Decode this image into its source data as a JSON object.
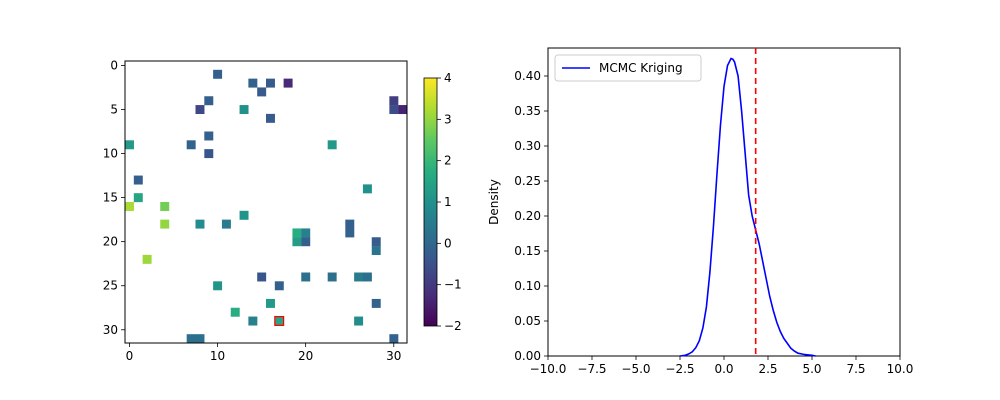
{
  "chart_data": [
    {
      "type": "heatmap",
      "grid_size": [
        32,
        32
      ],
      "xlim": [
        -0.5,
        31.5
      ],
      "ylim": [
        31.5,
        -0.5
      ],
      "xticks": [
        0,
        10,
        20,
        30
      ],
      "yticks": [
        0,
        5,
        10,
        15,
        20,
        25,
        30
      ],
      "xtick_labels": [
        "0",
        "10",
        "20",
        "30"
      ],
      "ytick_labels": [
        "0",
        "5",
        "10",
        "15",
        "20",
        "25",
        "30"
      ],
      "colormap": "viridis",
      "color_range": [
        -2,
        4
      ],
      "colorbar_ticks": [
        4,
        3,
        2,
        1,
        0,
        -1,
        -2
      ],
      "colorbar_tick_labels": [
        "4",
        "3",
        "2",
        "1",
        "0",
        "−1",
        "−2"
      ],
      "highlight_cell": {
        "x": 17,
        "y": 29,
        "value": 1.5,
        "edge_color": "#ff0000"
      },
      "cells": [
        {
          "x": 10,
          "y": 1,
          "value": -0.2
        },
        {
          "x": 14,
          "y": 2,
          "value": -0.1
        },
        {
          "x": 16,
          "y": 2,
          "value": -0.3
        },
        {
          "x": 18,
          "y": 2,
          "value": -1.3
        },
        {
          "x": 15,
          "y": 3,
          "value": -0.3
        },
        {
          "x": 9,
          "y": 4,
          "value": -0.2
        },
        {
          "x": 30,
          "y": 4,
          "value": -0.9
        },
        {
          "x": 8,
          "y": 5,
          "value": -0.7
        },
        {
          "x": 13,
          "y": 5,
          "value": 1.0
        },
        {
          "x": 30,
          "y": 5,
          "value": -0.6
        },
        {
          "x": 31,
          "y": 5,
          "value": -1.4
        },
        {
          "x": 16,
          "y": 6,
          "value": -0.3
        },
        {
          "x": 9,
          "y": 8,
          "value": -0.2
        },
        {
          "x": 0,
          "y": 9,
          "value": 1.2
        },
        {
          "x": 7,
          "y": 9,
          "value": -0.1
        },
        {
          "x": 23,
          "y": 9,
          "value": 1.2
        },
        {
          "x": 9,
          "y": 10,
          "value": -0.4
        },
        {
          "x": 1,
          "y": 13,
          "value": -0.2
        },
        {
          "x": 27,
          "y": 14,
          "value": 1.0
        },
        {
          "x": 1,
          "y": 15,
          "value": 1.5
        },
        {
          "x": 4,
          "y": 16,
          "value": 2.7
        },
        {
          "x": 0,
          "y": 16,
          "value": 3.2
        },
        {
          "x": 13,
          "y": 17,
          "value": 1.1
        },
        {
          "x": 4,
          "y": 18,
          "value": 3.0
        },
        {
          "x": 8,
          "y": 18,
          "value": 0.9
        },
        {
          "x": 11,
          "y": 18,
          "value": 0.5
        },
        {
          "x": 25,
          "y": 18,
          "value": -0.2
        },
        {
          "x": 19,
          "y": 19,
          "value": 1.7
        },
        {
          "x": 20,
          "y": 19,
          "value": 0.6
        },
        {
          "x": 25,
          "y": 19,
          "value": -0.1
        },
        {
          "x": 19,
          "y": 20,
          "value": 1.3
        },
        {
          "x": 20,
          "y": 20,
          "value": -0.2
        },
        {
          "x": 28,
          "y": 20,
          "value": -0.3
        },
        {
          "x": 28,
          "y": 21,
          "value": 0.3
        },
        {
          "x": 2,
          "y": 22,
          "value": 3.1
        },
        {
          "x": 15,
          "y": 24,
          "value": -0.4
        },
        {
          "x": 20,
          "y": 24,
          "value": 0.2
        },
        {
          "x": 23,
          "y": 24,
          "value": 0.2
        },
        {
          "x": 26,
          "y": 24,
          "value": 0.5
        },
        {
          "x": 27,
          "y": 24,
          "value": 0.2
        },
        {
          "x": 10,
          "y": 25,
          "value": 1.1
        },
        {
          "x": 17,
          "y": 25,
          "value": -0.2
        },
        {
          "x": 16,
          "y": 27,
          "value": 1.2
        },
        {
          "x": 28,
          "y": 27,
          "value": -0.1
        },
        {
          "x": 12,
          "y": 28,
          "value": 1.7
        },
        {
          "x": 14,
          "y": 29,
          "value": 0.6
        },
        {
          "x": 17,
          "y": 29,
          "value": 1.5
        },
        {
          "x": 26,
          "y": 29,
          "value": 0.9
        },
        {
          "x": 7,
          "y": 31,
          "value": 0.2
        },
        {
          "x": 8,
          "y": 31,
          "value": 0.2
        },
        {
          "x": 30,
          "y": 31,
          "value": -0.1
        }
      ]
    },
    {
      "type": "line",
      "title": "",
      "xlabel": "",
      "ylabel": "Density",
      "xlim": [
        -10,
        10
      ],
      "ylim": [
        0,
        0.44
      ],
      "xticks": [
        -10,
        -7.5,
        -5,
        -2.5,
        0,
        2.5,
        5,
        7.5,
        10
      ],
      "xtick_labels": [
        "−10.0",
        "−7.5",
        "−5.0",
        "−2.5",
        "0.0",
        "2.5",
        "5.0",
        "7.5",
        "10.0"
      ],
      "yticks": [
        0,
        0.05,
        0.1,
        0.15,
        0.2,
        0.25,
        0.3,
        0.35,
        0.4
      ],
      "ytick_labels": [
        "0.00",
        "0.05",
        "0.10",
        "0.15",
        "0.20",
        "0.25",
        "0.30",
        "0.35",
        "0.40"
      ],
      "legend_position": "upper-left",
      "series": [
        {
          "name": "MCMC Kriging",
          "color": "#0000ff",
          "x": [
            -2.5,
            -2.2,
            -2.0,
            -1.8,
            -1.6,
            -1.4,
            -1.2,
            -1.0,
            -0.8,
            -0.6,
            -0.4,
            -0.2,
            0.0,
            0.2,
            0.4,
            0.5,
            0.6,
            0.8,
            1.0,
            1.2,
            1.4,
            1.6,
            1.8,
            2.0,
            2.2,
            2.4,
            2.6,
            2.8,
            3.0,
            3.2,
            3.4,
            3.6,
            3.8,
            4.0,
            4.2,
            4.4,
            4.6,
            5.0,
            5.2
          ],
          "y": [
            0.0,
            0.001,
            0.003,
            0.006,
            0.012,
            0.022,
            0.04,
            0.07,
            0.12,
            0.185,
            0.26,
            0.33,
            0.385,
            0.415,
            0.425,
            0.424,
            0.42,
            0.4,
            0.35,
            0.29,
            0.23,
            0.2,
            0.18,
            0.16,
            0.135,
            0.11,
            0.085,
            0.065,
            0.048,
            0.035,
            0.025,
            0.018,
            0.011,
            0.007,
            0.004,
            0.003,
            0.002,
            0.001,
            0.0
          ]
        }
      ],
      "reference_line": {
        "x": 1.8,
        "color": "#ff0000",
        "style": "dashed"
      }
    }
  ]
}
